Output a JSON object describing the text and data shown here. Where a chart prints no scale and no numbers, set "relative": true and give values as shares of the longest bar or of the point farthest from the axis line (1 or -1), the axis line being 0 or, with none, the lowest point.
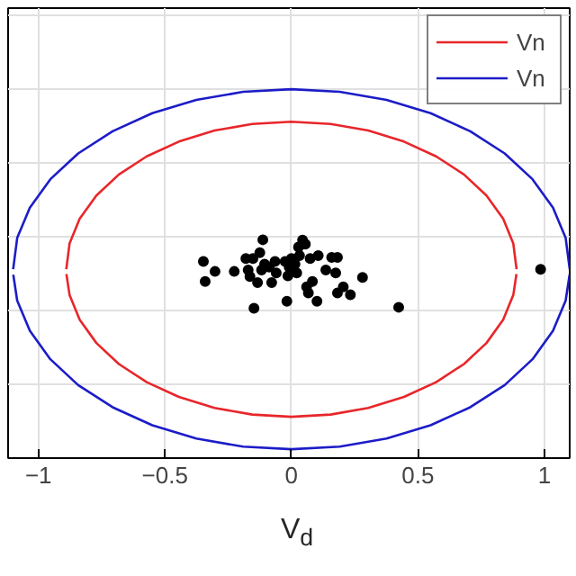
{
  "chart_data": {
    "type": "line",
    "xlabel": "V$_{d}$",
    "relative": true,
    "xlim": [
      -1.12,
      1.1
    ],
    "xticks": [
      -1,
      -0.5,
      0,
      0.5,
      1
    ],
    "grid": true,
    "legend": "top right",
    "tick_labels": "x",
    "series": [
      {
        "name": "Vn",
        "color": "#e8262a",
        "x": [
          -0.89,
          -0.877,
          -0.837,
          -0.771,
          -0.682,
          -0.572,
          -0.445,
          -0.304,
          -0.155,
          0,
          0.155,
          0.304,
          0.445,
          0.572,
          0.682,
          0.771,
          0.837,
          0.877,
          0.89
        ],
        "values": [
          0.512,
          0.582,
          0.649,
          0.712,
          0.769,
          0.818,
          0.858,
          0.888,
          0.906,
          0.912,
          0.906,
          0.888,
          0.858,
          0.818,
          0.769,
          0.712,
          0.649,
          0.582,
          0.512
        ]
      },
      {
        "color": "#e8262a",
        "x": [
          -0.8895,
          -0.877,
          -0.837,
          -0.771,
          -0.682,
          -0.572,
          -0.445,
          -0.304,
          -0.155,
          0,
          0.155,
          0.304,
          0.445,
          0.572,
          0.682,
          0.771,
          0.837,
          0.877,
          0.8895
        ],
        "values": [
          0.499,
          0.442,
          0.375,
          0.312,
          0.255,
          0.206,
          0.166,
          0.136,
          0.118,
          0.112,
          0.118,
          0.136,
          0.166,
          0.206,
          0.255,
          0.312,
          0.375,
          0.442,
          0.499
        ]
      },
      {
        "name": "Vn",
        "color": "#1c1cc8",
        "x": [
          -1.1,
          -1.084,
          -1.034,
          -0.953,
          -0.843,
          -0.707,
          -0.55,
          -0.376,
          -0.191,
          0,
          0.191,
          0.376,
          0.55,
          0.707,
          0.843,
          0.953,
          1.034,
          1.084,
          1.1
        ],
        "values": [
          0.512,
          0.597,
          0.679,
          0.756,
          0.826,
          0.886,
          0.935,
          0.971,
          0.993,
          1.0,
          0.993,
          0.971,
          0.935,
          0.886,
          0.826,
          0.756,
          0.679,
          0.597,
          0.512
        ]
      },
      {
        "color": "#1c1cc8",
        "x": [
          -1.0995,
          -1.084,
          -1.034,
          -0.953,
          -0.843,
          -0.707,
          -0.55,
          -0.376,
          -0.191,
          0,
          0.191,
          0.376,
          0.55,
          0.707,
          0.843,
          0.953,
          1.034,
          1.084,
          1.0995
        ],
        "values": [
          0.497,
          0.427,
          0.345,
          0.268,
          0.198,
          0.138,
          0.089,
          0.053,
          0.031,
          0.024,
          0.031,
          0.053,
          0.089,
          0.138,
          0.198,
          0.268,
          0.345,
          0.427,
          0.497
        ]
      },
      {
        "type": "scatter",
        "marker": "circle",
        "color": "#000000",
        "x": [
          -0.348,
          -0.341,
          -0.302,
          -0.226,
          -0.18,
          -0.171,
          -0.164,
          -0.152,
          -0.148,
          -0.134,
          -0.125,
          -0.113,
          -0.118,
          -0.106,
          -0.088,
          -0.078,
          -0.065,
          -0.06,
          -0.048,
          -0.032,
          -0.025,
          -0.018,
          -0.014,
          -0.009,
          0.0,
          0.014,
          0.021,
          0.028,
          0.032,
          0.044,
          0.055,
          0.06,
          0.067,
          0.074,
          0.083,
          0.101,
          0.106,
          0.125,
          0.136,
          0.159,
          0.175,
          0.182,
          0.182,
          0.205,
          0.233,
          0.281,
          0.424,
          0.985
        ],
        "values": [
          0.533,
          0.479,
          0.506,
          0.506,
          0.541,
          0.51,
          0.492,
          0.541,
          0.406,
          0.476,
          0.557,
          0.592,
          0.51,
          0.526,
          0.518,
          0.476,
          0.533,
          0.502,
          null,
          null,
          0.533,
          0.425,
          0.494,
          0.518,
          0.541,
          0.526,
          0.502,
          0.572,
          0.549,
          0.591,
          0.58,
          0.464,
          0.448,
          0.541,
          0.479,
          0.425,
          0.549,
          null,
          0.51,
          0.544,
          0.502,
          0.544,
          0.448,
          0.464,
          0.443,
          0.49,
          0.409,
          0.512
        ]
      }
    ]
  }
}
